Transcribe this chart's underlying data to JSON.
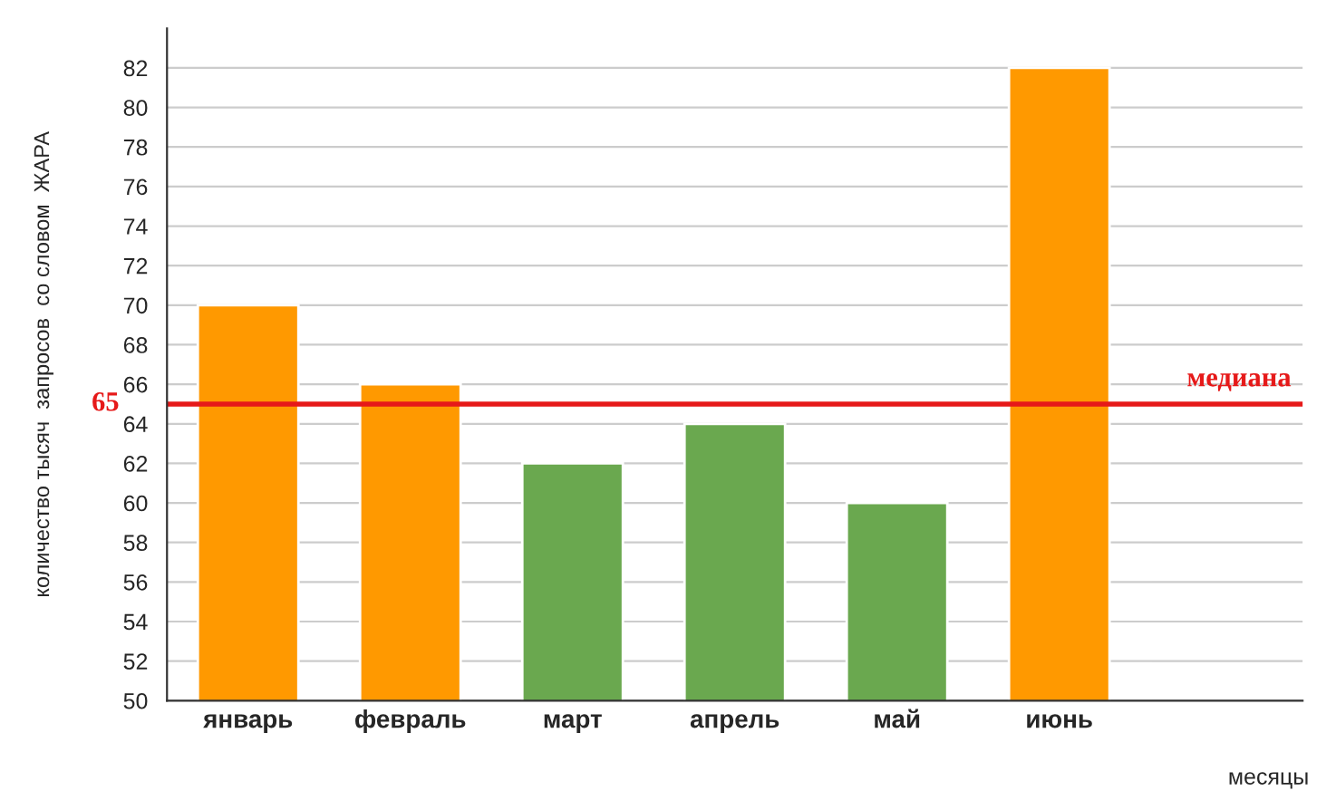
{
  "chart_data": {
    "type": "bar",
    "categories": [
      "январь",
      "февраль",
      "март",
      "апрель",
      "май",
      "июнь"
    ],
    "values": [
      70,
      66,
      62,
      64,
      60,
      82
    ],
    "colors": [
      "#ff9900",
      "#ff9900",
      "#6aa84f",
      "#6aa84f",
      "#6aa84f",
      "#ff9900"
    ],
    "xlabel": "месяцы",
    "ylabel": "количество тысяч  запросов  со словом  ЖАРА",
    "ylim": [
      50,
      84
    ],
    "yticks": [
      50,
      52,
      54,
      56,
      58,
      60,
      62,
      64,
      66,
      68,
      70,
      72,
      74,
      76,
      78,
      80,
      82
    ],
    "grid": "y",
    "annotations": [
      "65"
    ],
    "ref_lines": [
      {
        "axis": "y",
        "value": 65,
        "label": "медиана",
        "color": "#e61919"
      }
    ]
  }
}
